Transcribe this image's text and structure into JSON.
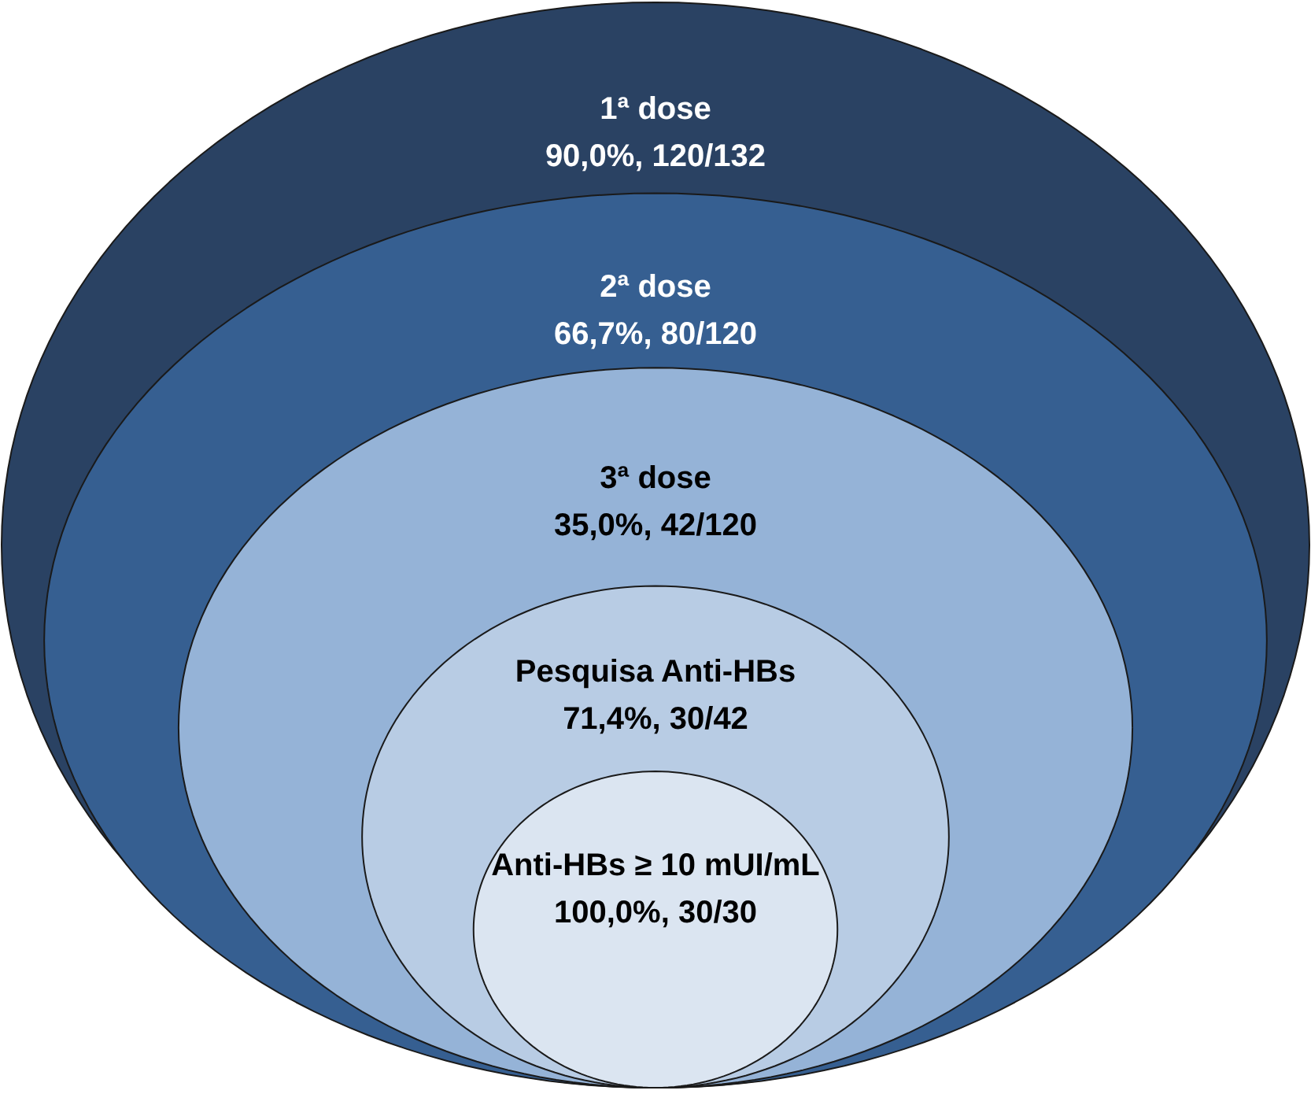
{
  "chart_data": {
    "type": "other",
    "categories": [
      "1ª dose",
      "2ª dose",
      "3ª dose",
      "Pesquisa Anti-HBs",
      "Anti-HBs ≥ 10 mUI/mL"
    ],
    "values": [
      90.0,
      66.7,
      35.0,
      71.4,
      100.0
    ],
    "value_labels": [
      "90,0%, 120/132",
      "66,7%, 80/120",
      "35,0%, 42/120",
      "71,4%, 30/42",
      "100,0%, 30/30"
    ],
    "colors": [
      "#2a4263",
      "#365f91",
      "#95b3d7",
      "#b8cce4",
      "#dbe5f1"
    ]
  }
}
